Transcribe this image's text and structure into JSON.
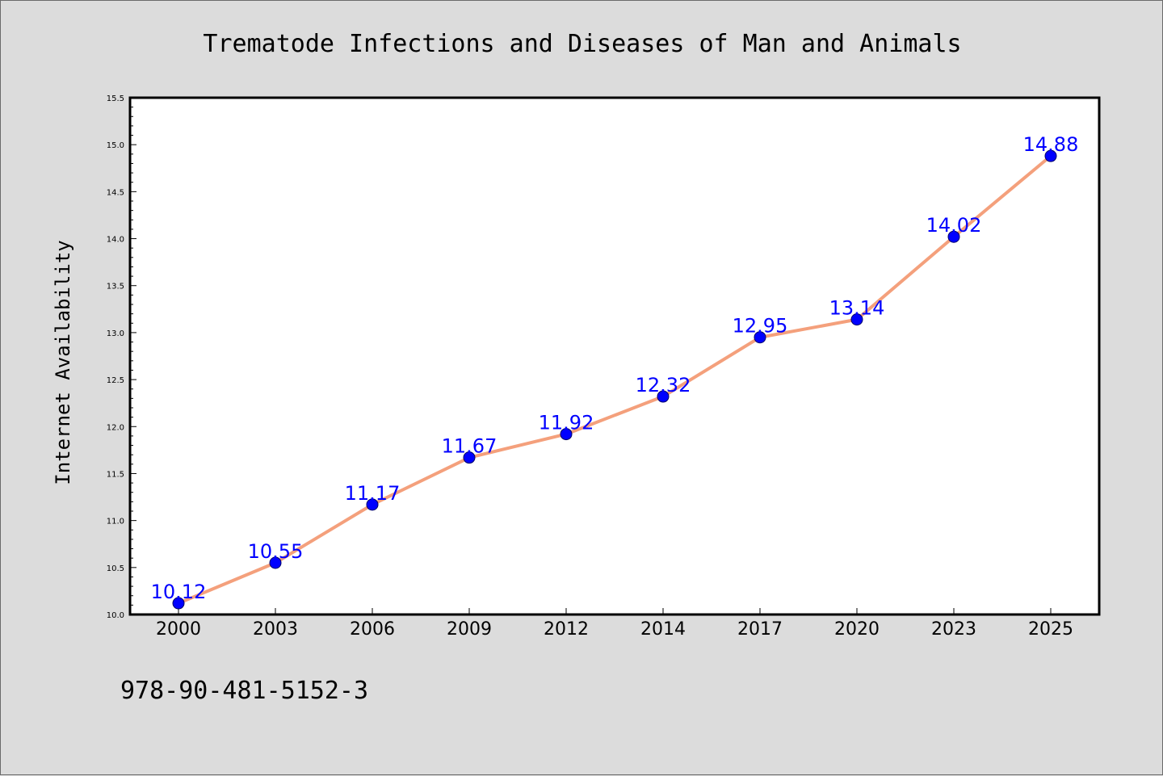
{
  "chart_data": {
    "type": "line",
    "title": "Trematode Infections and Diseases of Man and Animals",
    "xlabel": "",
    "ylabel": "Internet Availability",
    "categories": [
      "2000",
      "2003",
      "2006",
      "2009",
      "2012",
      "2014",
      "2017",
      "2020",
      "2023",
      "2025"
    ],
    "series": [
      {
        "values": [
          10.12,
          10.55,
          11.17,
          11.67,
          11.92,
          12.32,
          12.95,
          13.14,
          14.02,
          14.88
        ],
        "data_labels": [
          "10.12",
          "10.55",
          "11.17",
          "11.67",
          "11.92",
          "12.32",
          "12.95",
          "13.14",
          "14.02",
          "14.88"
        ],
        "line_color": "#f4a07c",
        "marker_color": "#0000ff",
        "label_color": "#0000ff"
      }
    ],
    "ylim": [
      10.0,
      15.5
    ],
    "yticks": [
      "10.0",
      "10.5",
      "11.0",
      "11.5",
      "12.0",
      "12.5",
      "13.0",
      "13.5",
      "14.0",
      "14.5",
      "15.0",
      "15.5"
    ],
    "grid": false,
    "legend": "none",
    "background_color": "#dcdcdc",
    "plot_background_color": "#ffffff"
  },
  "footer": {
    "isbn": "978-90-481-5152-3"
  }
}
